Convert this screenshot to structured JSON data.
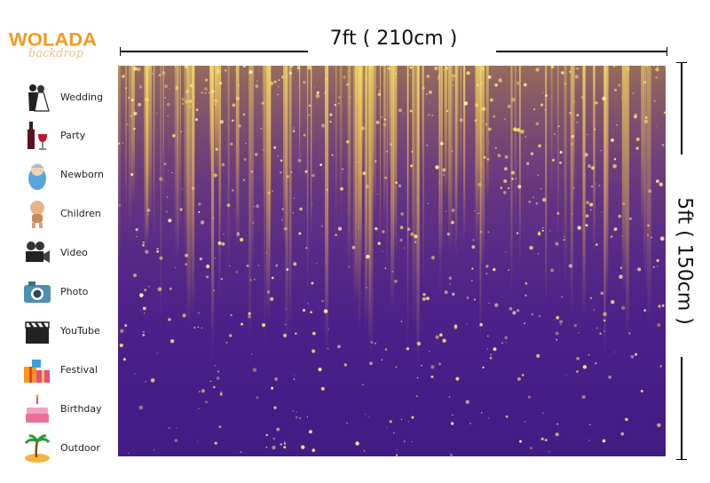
{
  "brand": {
    "name": "WOLADA",
    "tagline": "backdrop"
  },
  "dimensions": {
    "width_label": "7ft ( 210cm )",
    "height_label": "5ft ( 150cm )"
  },
  "sidebar": {
    "items": [
      {
        "label": "Wedding",
        "icon": "wedding-couple-icon"
      },
      {
        "label": "Party",
        "icon": "wine-icon"
      },
      {
        "label": "Newborn",
        "icon": "baby-icon"
      },
      {
        "label": "Children",
        "icon": "child-icon"
      },
      {
        "label": "Video",
        "icon": "video-camera-icon"
      },
      {
        "label": "Photo",
        "icon": "camera-icon"
      },
      {
        "label": "YouTube",
        "icon": "clapperboard-icon"
      },
      {
        "label": "Festival",
        "icon": "gift-icon"
      },
      {
        "label": "Birthday",
        "icon": "cake-icon"
      },
      {
        "label": "Outdoor",
        "icon": "island-icon"
      }
    ]
  },
  "colors": {
    "background": "#5a2a86",
    "sparkle": "#f2c94c",
    "brand": "#f39a1e"
  }
}
